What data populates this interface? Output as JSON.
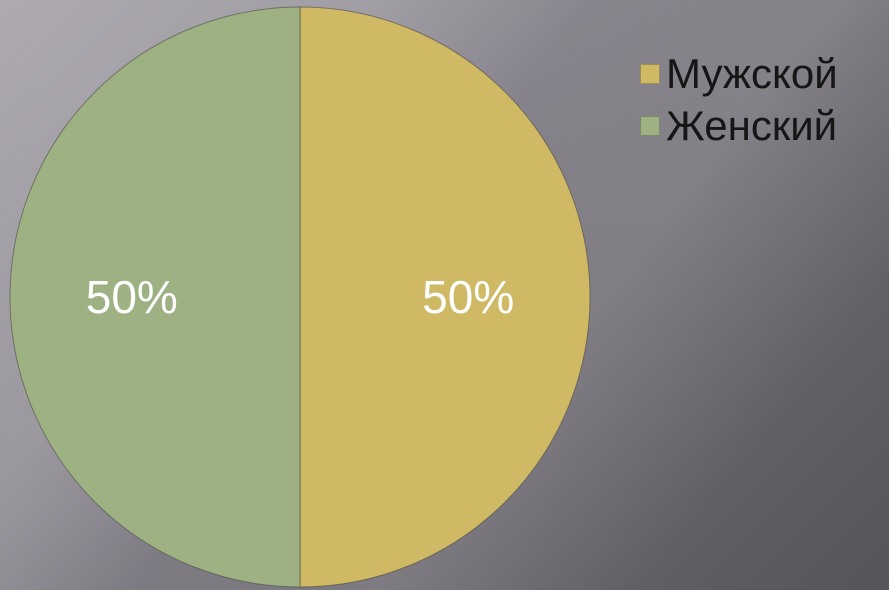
{
  "chart_data": {
    "type": "pie",
    "categories": [
      "Мужской",
      "Женский"
    ],
    "values": [
      50,
      50
    ],
    "value_labels": [
      "50%",
      "50%"
    ],
    "colors": [
      "#cfb964",
      "#9db183"
    ],
    "legend_position": "top-right",
    "start_angle": "12 o'clock, clockwise"
  }
}
